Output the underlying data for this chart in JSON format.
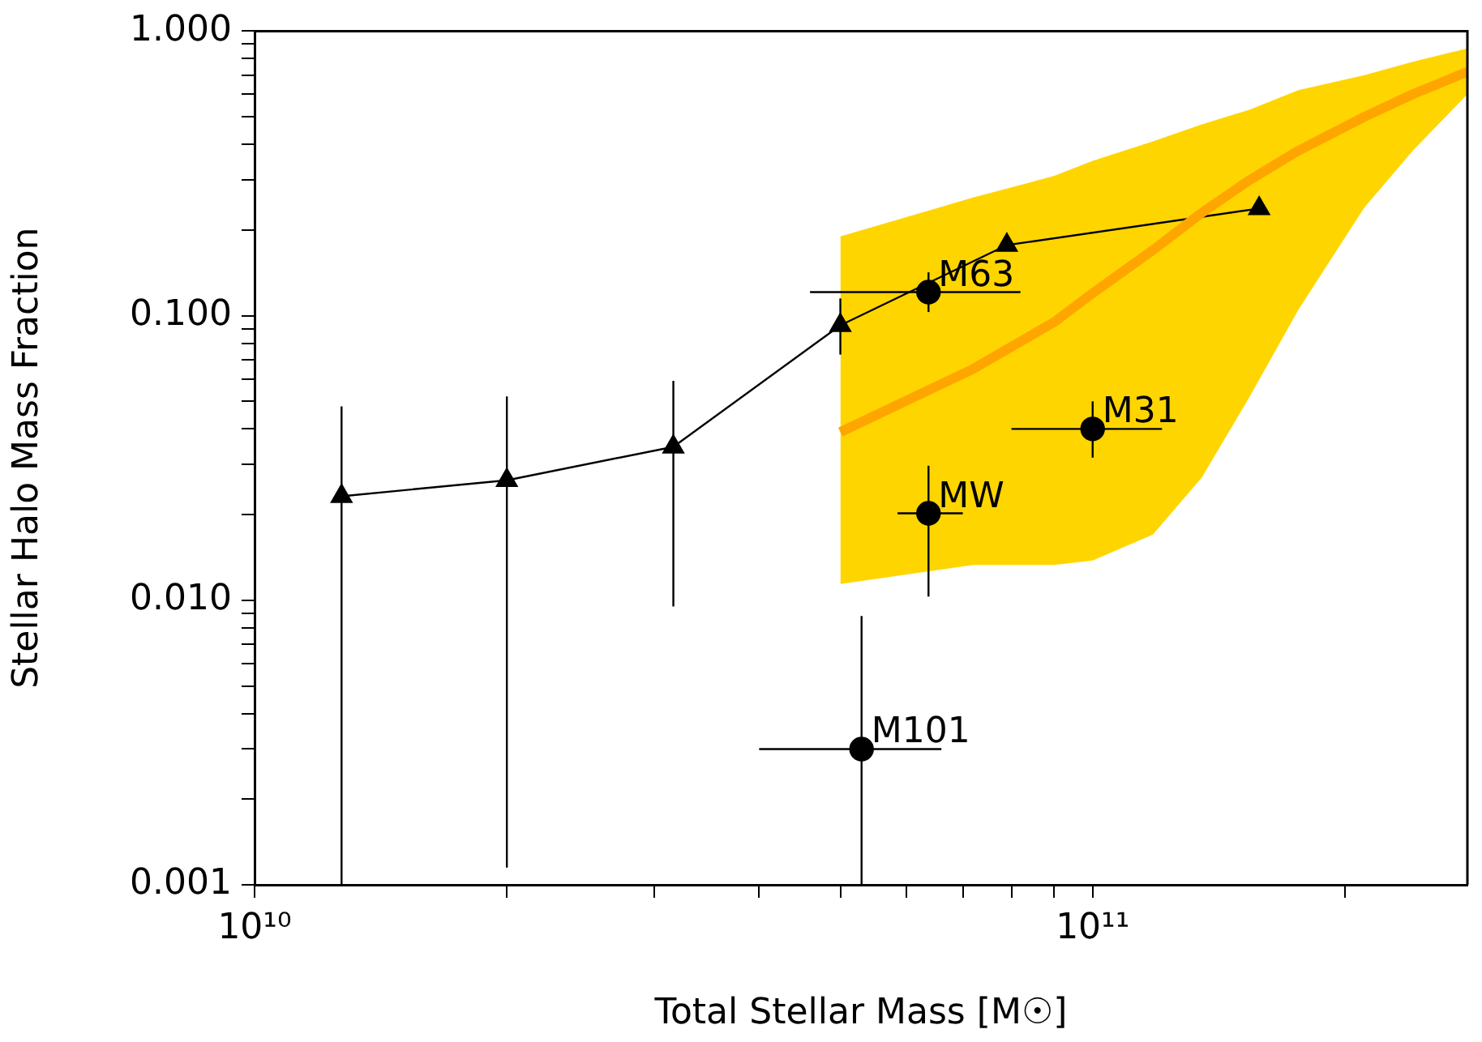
{
  "chart_data": {
    "type": "line",
    "xlabel": "Total Stellar Mass [M☉]",
    "ylabel": "Stellar Halo Mass Fraction",
    "log": "xy",
    "grid": false,
    "legend": false,
    "xlim": [
      10000000000.0,
      280000000000.0
    ],
    "ylim": [
      0.001,
      1
    ],
    "xticks": [
      {
        "value": 10000000000.0,
        "label": "10¹⁰"
      },
      {
        "value": 20000000000.0,
        "label": null
      },
      {
        "value": 30000000000.0,
        "label": null
      },
      {
        "value": 40000000000.0,
        "label": null
      },
      {
        "value": 50000000000.0,
        "label": null
      },
      {
        "value": 60000000000.0,
        "label": null
      },
      {
        "value": 70000000000.0,
        "label": null
      },
      {
        "value": 80000000000.0,
        "label": null
      },
      {
        "value": 90000000000.0,
        "label": null
      },
      {
        "value": 100000000000.0,
        "label": "10¹¹"
      },
      {
        "value": 200000000000.0,
        "label": null
      }
    ],
    "yticks": [
      {
        "value": 0.001,
        "label": "0.001"
      },
      {
        "value": 0.002,
        "label": null
      },
      {
        "value": 0.003,
        "label": null
      },
      {
        "value": 0.004,
        "label": null
      },
      {
        "value": 0.005,
        "label": null
      },
      {
        "value": 0.006,
        "label": null
      },
      {
        "value": 0.007,
        "label": null
      },
      {
        "value": 0.008,
        "label": null
      },
      {
        "value": 0.009,
        "label": null
      },
      {
        "value": 0.01,
        "label": "0.010"
      },
      {
        "value": 0.02,
        "label": null
      },
      {
        "value": 0.03,
        "label": null
      },
      {
        "value": 0.04,
        "label": null
      },
      {
        "value": 0.05,
        "label": null
      },
      {
        "value": 0.06,
        "label": null
      },
      {
        "value": 0.07,
        "label": null
      },
      {
        "value": 0.08,
        "label": null
      },
      {
        "value": 0.09,
        "label": null
      },
      {
        "value": 0.1,
        "label": "0.100"
      },
      {
        "value": 0.2,
        "label": null
      },
      {
        "value": 0.3,
        "label": null
      },
      {
        "value": 0.4,
        "label": null
      },
      {
        "value": 0.5,
        "label": null
      },
      {
        "value": 0.6,
        "label": null
      },
      {
        "value": 0.7,
        "label": null
      },
      {
        "value": 0.8,
        "label": null
      },
      {
        "value": 0.9,
        "label": null
      },
      {
        "value": 1,
        "label": "1.000"
      }
    ],
    "series": [
      {
        "color": "#ffa500",
        "marker": "none",
        "x": [
          50000000000.0,
          72000000000.0,
          90000000000.0,
          100000000000.0,
          118000000000.0,
          135000000000.0,
          154000000000.0,
          176000000000.0,
          211000000000.0,
          241000000000.0,
          280000000000.0
        ],
        "values": [
          0.039,
          0.065,
          0.095,
          0.12,
          0.17,
          0.23,
          0.3,
          0.38,
          0.5,
          0.6,
          0.72
        ],
        "lower": [
          0.0114,
          0.0133,
          0.0133,
          0.0138,
          0.017,
          0.027,
          0.052,
          0.105,
          0.24,
          0.38,
          0.6
        ],
        "upper": [
          0.19,
          0.26,
          0.31,
          0.35,
          0.41,
          0.47,
          0.53,
          0.62,
          0.7,
          0.78,
          0.87
        ]
      },
      {
        "color": "#000000",
        "marker": "triangle",
        "x": [
          12700000000.0,
          20000000000.0,
          31600000000.0,
          50000000000.0,
          79000000000.0,
          158000000000.0
        ],
        "values": [
          0.0232,
          0.0264,
          0.0346,
          0.0925,
          0.177,
          0.238
        ],
        "errors": [
          [
            0.001,
            0.048
          ],
          [
            0.00115,
            0.052
          ],
          [
            0.0095,
            0.059
          ],
          [
            0.073,
            0.115
          ],
          null,
          null
        ]
      },
      {
        "type": "scatter",
        "color": "#000000",
        "marker": "circle",
        "x": [
          63700000000.0,
          100000000000.0,
          63700000000.0,
          53000000000.0
        ],
        "values": [
          0.121,
          0.04,
          0.0202,
          0.003
        ],
        "errors": [
          [
            0.103,
            0.142
          ],
          [
            0.0317,
            0.05
          ],
          [
            0.0103,
            0.0297
          ],
          [
            0.001,
            0.0088
          ]
        ],
        "xerrors": [
          [
            46000000000.0,
            82000000000.0
          ],
          [
            80000000000.0,
            121000000000.0
          ],
          [
            58500000000.0,
            70000000000.0
          ],
          [
            40000000000.0,
            66000000000.0
          ]
        ]
      }
    ],
    "annotations": [
      {
        "text": "M63",
        "x": 63700000000.0,
        "y": 0.121
      },
      {
        "text": "M31",
        "x": 100000000000.0,
        "y": 0.04
      },
      {
        "text": "MW",
        "x": 63700000000.0,
        "y": 0.0202
      },
      {
        "text": "M101",
        "x": 53000000000.0,
        "y": 0.003
      }
    ]
  }
}
